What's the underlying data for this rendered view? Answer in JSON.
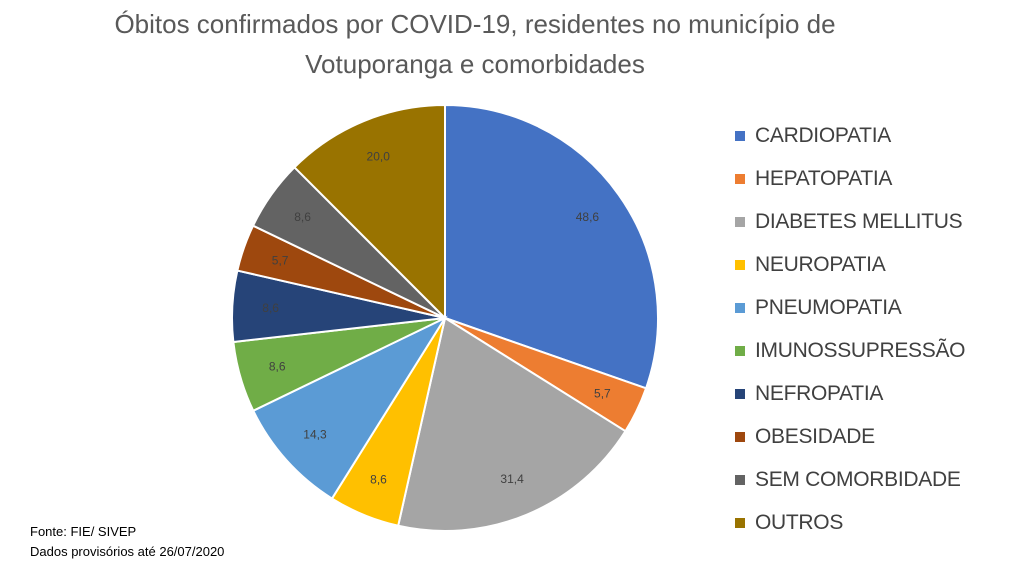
{
  "chart_data": {
    "type": "pie",
    "title_line1": "Óbitos confirmados por COVID-19, residentes no município de",
    "title_line2": "Votuporanga e comorbidades",
    "categories": [
      "CARDIOPATIA",
      "HEPATOPATIA",
      "DIABETES MELLITUS",
      "NEUROPATIA",
      "PNEUMOPATIA",
      "IMUNOSSUPRESSÃO",
      "NEFROPATIA",
      "OBESIDADE",
      "SEM COMORBIDADE",
      "OUTROS"
    ],
    "values": [
      48.6,
      5.7,
      31.4,
      8.6,
      14.3,
      8.6,
      8.6,
      5.7,
      8.6,
      20.0
    ],
    "value_labels": [
      "48,6",
      "5,7",
      "31,4",
      "8,6",
      "14,3",
      "8,6",
      "8,6",
      "5,7",
      "8,6",
      "20,0"
    ],
    "colors": [
      "#4472C4",
      "#ED7D31",
      "#A5A5A5",
      "#FFC000",
      "#5B9BD5",
      "#70AD47",
      "#264478",
      "#9E480E",
      "#636363",
      "#997300"
    ],
    "legend_position": "right"
  },
  "footer": {
    "source": "Fonte: FIE/ SIVEP",
    "note": "Dados provisórios até 26/07/2020"
  }
}
